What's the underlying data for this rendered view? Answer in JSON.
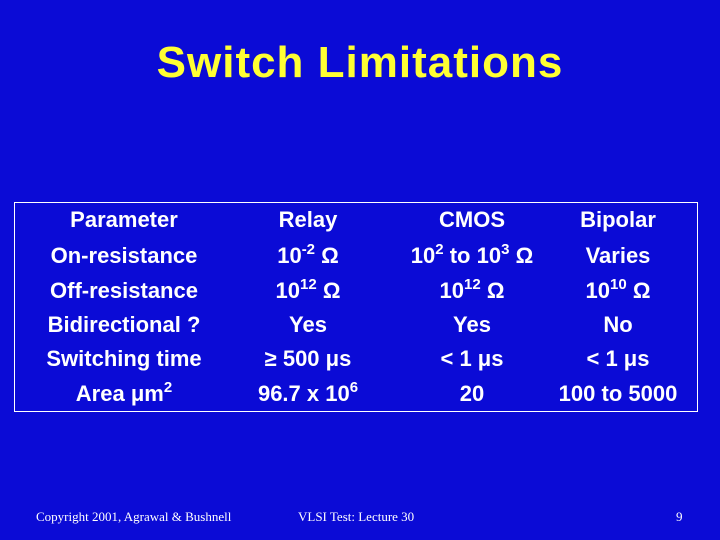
{
  "slide": {
    "title": "Switch Limitations",
    "table": {
      "headers": [
        "Parameter",
        "Relay",
        "CMOS",
        "Bipolar"
      ],
      "rows": [
        {
          "param": "On-resistance",
          "relay": "10",
          "relay_exp": "-2",
          "relay_unit": "Ω",
          "cmos": "10",
          "cmos_exp": "2",
          "cmos_mid": "to 10",
          "cmos_exp2": "3",
          "cmos_unit": "Ω",
          "bipolar": "Varies"
        },
        {
          "param": "Off-resistance",
          "relay": "10",
          "relay_exp": "12",
          "relay_unit": "Ω",
          "cmos": "10",
          "cmos_exp": "12",
          "cmos_unit": "Ω",
          "bipolar": "10",
          "bipolar_exp": "10",
          "bipolar_unit": "Ω"
        },
        {
          "param": "Bidirectional ?",
          "relay": "Yes",
          "cmos": "Yes",
          "bipolar": "No"
        },
        {
          "param": "Switching time",
          "relay": "≥  500 μs",
          "cmos": "< 1 μs",
          "bipolar": "< 1 μs"
        },
        {
          "param": "Area μm",
          "param_exp": "2",
          "relay": "96.7 x 10",
          "relay_exp": "6",
          "cmos": "20",
          "bipolar": "100 to 5000"
        }
      ]
    },
    "footer": {
      "left": "Copyright 2001, Agrawal & Bushnell",
      "center": "VLSI Test: Lecture 30",
      "page": "9"
    }
  }
}
